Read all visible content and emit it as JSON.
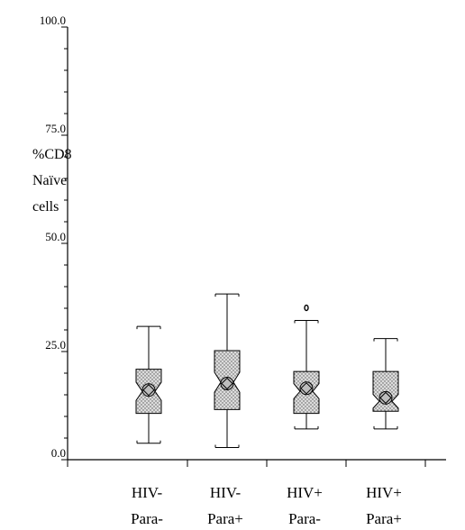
{
  "chart_data": {
    "type": "boxplot",
    "title": "",
    "ylabel_lines": [
      "%CD8",
      "Naïve",
      "cells"
    ],
    "xlabel": "",
    "ylim": [
      0,
      100
    ],
    "yticks": [
      {
        "value": 0,
        "label": "0.0"
      },
      {
        "value": 25,
        "label": "25.0"
      },
      {
        "value": 50,
        "label": "50.0"
      },
      {
        "value": 75,
        "label": "75.0"
      },
      {
        "value": 100,
        "label": "100.0"
      }
    ],
    "grid": false,
    "categories": [
      {
        "line1": "HIV-",
        "line2": "Para-"
      },
      {
        "line1": "HIV-",
        "line2": "Para+"
      },
      {
        "line1": "HIV+",
        "line2": "Para-"
      },
      {
        "line1": "HIV+",
        "line2": "Para+"
      }
    ],
    "boxes": [
      {
        "min": 3.8,
        "q1": 10.7,
        "median": 15.8,
        "q3": 20.9,
        "max": 30.8,
        "mean": 16.1,
        "notch_low": 13.7,
        "notch_high": 17.9,
        "outliers": []
      },
      {
        "min": 2.8,
        "q1": 11.6,
        "median": 17.9,
        "q3": 25.2,
        "max": 38.3,
        "mean": 17.6,
        "notch_low": 15.6,
        "notch_high": 20.2,
        "outliers": []
      },
      {
        "min": 7.1,
        "q1": 10.7,
        "median": 15.8,
        "q3": 20.4,
        "max": 32.2,
        "mean": 16.5,
        "notch_low": 14.1,
        "notch_high": 17.6,
        "outliers": [
          35.1
        ]
      },
      {
        "min": 7.1,
        "q1": 11.2,
        "median": 13.5,
        "q3": 20.4,
        "max": 28.0,
        "mean": 14.3,
        "notch_low": 11.9,
        "notch_high": 15.1,
        "outliers": []
      }
    ]
  }
}
